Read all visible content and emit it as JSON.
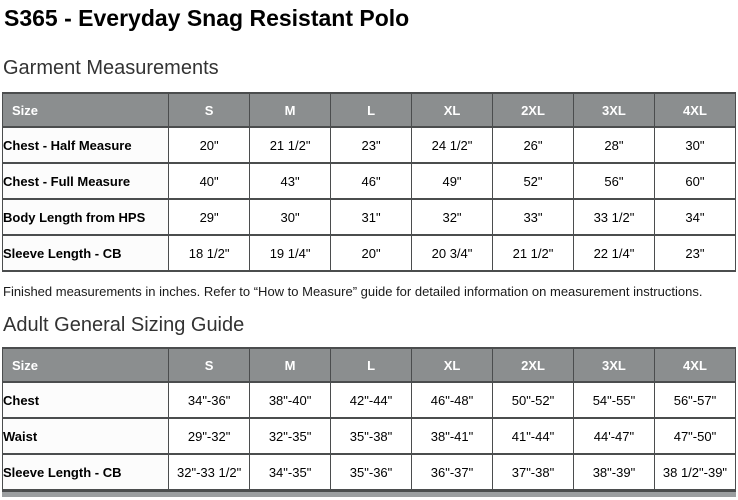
{
  "page": {
    "title": "S365 - Everyday Snag Resistant Polo"
  },
  "colors": {
    "table_header_bg": "#8b8e8f",
    "table_border": "#4b4d4e",
    "header_text": "#ffffff"
  },
  "sections": [
    {
      "heading": "Garment Measurements",
      "table": {
        "columns": [
          "Size",
          "S",
          "M",
          "L",
          "XL",
          "2XL",
          "3XL",
          "4XL"
        ],
        "rows": [
          {
            "label": "Chest - Half Measure",
            "values": [
              "20\"",
              "21 1/2\"",
              "23\"",
              "24 1/2\"",
              "26\"",
              "28\"",
              "30\""
            ]
          },
          {
            "label": "Chest - Full Measure",
            "values": [
              "40\"",
              "43\"",
              "46\"",
              "49\"",
              "52\"",
              "56\"",
              "60\""
            ]
          },
          {
            "label": "Body Length from HPS",
            "values": [
              "29\"",
              "30\"",
              "31\"",
              "32\"",
              "33\"",
              "33 1/2\"",
              "34\""
            ]
          },
          {
            "label": "Sleeve Length - CB",
            "values": [
              "18 1/2\"",
              "19 1/4\"",
              "20\"",
              "20 3/4\"",
              "21 1/2\"",
              "22 1/4\"",
              "23\""
            ]
          }
        ]
      },
      "note": "Finished measurements in inches. Refer to “How to Measure” guide for detailed information on measurement instructions."
    },
    {
      "heading": "Adult General Sizing Guide",
      "table": {
        "columns": [
          "Size",
          "S",
          "M",
          "L",
          "XL",
          "2XL",
          "3XL",
          "4XL"
        ],
        "rows": [
          {
            "label": "Chest",
            "values": [
              "34\"-36\"",
              "38\"-40\"",
              "42\"-44\"",
              "46\"-48\"",
              "50\"-52\"",
              "54\"-55\"",
              "56\"-57\""
            ]
          },
          {
            "label": "Waist",
            "values": [
              "29\"-32\"",
              "32\"-35\"",
              "35\"-38\"",
              "38\"-41\"",
              "41\"-44\"",
              "44'-47\"",
              "47\"-50\""
            ]
          },
          {
            "label": "Sleeve Length - CB",
            "values": [
              "32\"-33 1/2\"",
              "34\"-35\"",
              "35\"-36\"",
              "36\"-37\"",
              "37\"-38\"",
              "38\"-39\"",
              "38 1/2\"-39\""
            ]
          }
        ]
      }
    }
  ]
}
